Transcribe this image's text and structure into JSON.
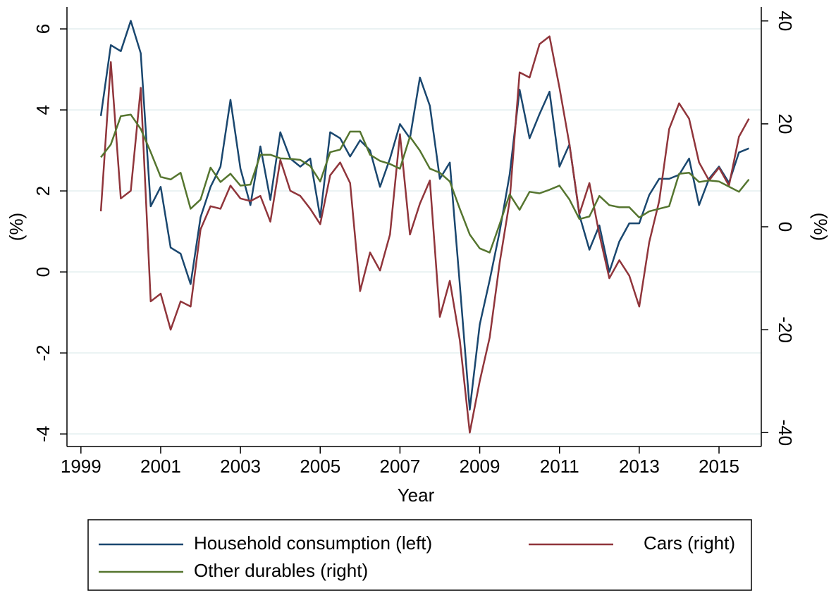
{
  "chart_data": {
    "type": "line",
    "x_label": "Year",
    "y_label": "(%)",
    "y2_label": "(%)",
    "grid": true,
    "legend": "bottom",
    "xlim": [
      1998.65,
      2016.06
    ],
    "xticks": [
      1999,
      2001,
      2003,
      2005,
      2007,
      2009,
      2011,
      2013,
      2015
    ],
    "ylim": [
      -4.31,
      6.54
    ],
    "yticks": [
      -4,
      -2,
      0,
      2,
      4,
      6
    ],
    "y2lim": [
      -42.7,
      42.7
    ],
    "y2ticks": [
      -40,
      -20,
      0,
      20,
      40
    ],
    "x": [
      1999.5,
      1999.75,
      2000,
      2000.25,
      2000.5,
      2000.75,
      2001,
      2001.25,
      2001.5,
      2001.75,
      2002,
      2002.25,
      2002.5,
      2002.75,
      2003,
      2003.25,
      2003.5,
      2003.75,
      2004,
      2004.25,
      2004.5,
      2004.75,
      2005,
      2005.25,
      2005.5,
      2005.75,
      2006,
      2006.25,
      2006.5,
      2006.75,
      2007,
      2007.25,
      2007.5,
      2007.75,
      2008,
      2008.25,
      2008.5,
      2008.75,
      2009,
      2009.25,
      2009.5,
      2009.75,
      2010,
      2010.25,
      2010.5,
      2010.75,
      2011,
      2011.25,
      2011.5,
      2011.75,
      2012,
      2012.25,
      2012.5,
      2012.75,
      2013,
      2013.25,
      2013.5,
      2013.75,
      2014,
      2014.25,
      2014.5,
      2014.75,
      2015,
      2015.25,
      2015.5,
      2015.75
    ],
    "series": [
      {
        "name": "Household consumption (left)",
        "color": "#1a476f",
        "axis": "y",
        "values": [
          3.85,
          5.6,
          5.45,
          6.2,
          5.4,
          1.62,
          2.1,
          0.6,
          0.45,
          -0.3,
          1.35,
          2.1,
          2.6,
          4.25,
          2.55,
          1.65,
          3.1,
          1.78,
          3.45,
          2.8,
          2.6,
          2.8,
          1.35,
          3.45,
          3.3,
          2.85,
          3.25,
          3.0,
          2.1,
          2.8,
          3.65,
          3.3,
          4.8,
          4.1,
          2.3,
          2.7,
          -0.3,
          -3.4,
          -1.3,
          -0.2,
          1.0,
          2.4,
          4.5,
          3.3,
          3.9,
          4.45,
          2.6,
          3.15,
          1.4,
          0.55,
          1.15,
          0.0,
          0.75,
          1.2,
          1.2,
          1.9,
          2.3,
          2.3,
          2.4,
          2.8,
          1.65,
          2.3,
          2.6,
          2.2,
          2.95,
          3.05
        ]
      },
      {
        "name": "Cars (right)",
        "color": "#90353b",
        "axis": "y2",
        "values": [
          3,
          32,
          5.5,
          7,
          27,
          -14.5,
          -13,
          -20,
          -14.5,
          -15.5,
          -0.5,
          4,
          3.5,
          8,
          5.5,
          5,
          6,
          1,
          13,
          7,
          6,
          3.5,
          0.5,
          10,
          12.5,
          8.5,
          -12.5,
          -5,
          -8.5,
          -1.5,
          18,
          -1.5,
          4.5,
          9,
          -17.5,
          -10.5,
          -22,
          -40,
          -30,
          -21.5,
          -7,
          5,
          30,
          29,
          35.5,
          37,
          27,
          16,
          2.5,
          8.5,
          -1.5,
          -10,
          -6.5,
          -9.5,
          -15.5,
          -3,
          5,
          19,
          24,
          21,
          12.5,
          9,
          11.5,
          8,
          17.5,
          21
        ]
      },
      {
        "name": "Other durables (right)",
        "color": "#55752f",
        "axis": "y2",
        "values": [
          13.5,
          16,
          21.5,
          21.8,
          19,
          14.5,
          9.7,
          9.2,
          10.5,
          3.5,
          5.3,
          11.5,
          8.7,
          10.3,
          8,
          8.2,
          14,
          14,
          13.3,
          13.2,
          13,
          11.8,
          8.8,
          14.5,
          15,
          18.5,
          18.5,
          14,
          12.8,
          12.2,
          11.3,
          17.5,
          14.8,
          11.3,
          10.5,
          8.8,
          3.5,
          -1.5,
          -4.2,
          -5,
          0.5,
          6.3,
          3.3,
          6.8,
          6.5,
          7.2,
          8,
          5.3,
          1.5,
          2,
          6,
          4.2,
          3.8,
          3.8,
          1.8,
          3,
          3.5,
          4,
          10.3,
          10.5,
          8.7,
          9,
          8.8,
          7.8,
          6.8,
          9.2
        ]
      }
    ]
  }
}
